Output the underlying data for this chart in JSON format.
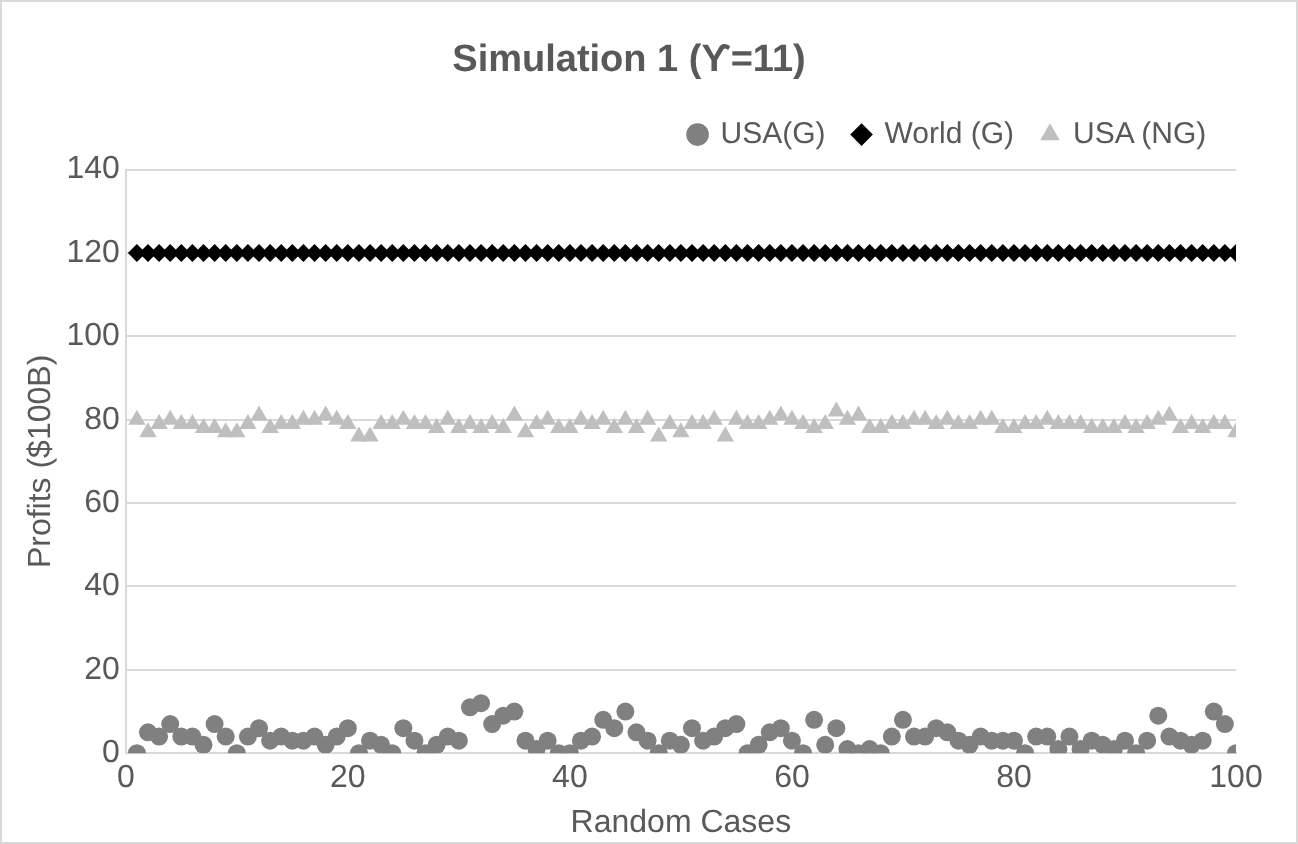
{
  "chart_data": {
    "type": "scatter",
    "title": "Simulation 1 (ϒ=11)",
    "xlabel": "Random Cases",
    "ylabel": "Profits ($100B)",
    "x": [
      1,
      2,
      3,
      4,
      5,
      6,
      7,
      8,
      9,
      10,
      11,
      12,
      13,
      14,
      15,
      16,
      17,
      18,
      19,
      20,
      21,
      22,
      23,
      24,
      25,
      26,
      27,
      28,
      29,
      30,
      31,
      32,
      33,
      34,
      35,
      36,
      37,
      38,
      39,
      40,
      41,
      42,
      43,
      44,
      45,
      46,
      47,
      48,
      49,
      50,
      51,
      52,
      53,
      54,
      55,
      56,
      57,
      58,
      59,
      60,
      61,
      62,
      63,
      64,
      65,
      66,
      67,
      68,
      69,
      70,
      71,
      72,
      73,
      74,
      75,
      76,
      77,
      78,
      79,
      80,
      81,
      82,
      83,
      84,
      85,
      86,
      87,
      88,
      89,
      90,
      91,
      92,
      93,
      94,
      95,
      96,
      97,
      98,
      99,
      100
    ],
    "series": [
      {
        "name": "USA(G)",
        "color": "#808080",
        "marker": "circle",
        "values": [
          0,
          5,
          4,
          7,
          4,
          4,
          2,
          7,
          4,
          0,
          4,
          6,
          3,
          4,
          3,
          3,
          4,
          2,
          4,
          6,
          0,
          3,
          2,
          0,
          6,
          3,
          0,
          2,
          4,
          3,
          11,
          12,
          7,
          9,
          10,
          3,
          1,
          3,
          0,
          0,
          3,
          4,
          8,
          6,
          10,
          5,
          3,
          0,
          3,
          2,
          6,
          3,
          4,
          6,
          7,
          0,
          2,
          5,
          6,
          3,
          0,
          8,
          2,
          6,
          1,
          0,
          1,
          0,
          4,
          8,
          4,
          4,
          6,
          5,
          3,
          2,
          4,
          3,
          3,
          3,
          0,
          4,
          4,
          1,
          4,
          1,
          3,
          2,
          1,
          3,
          0,
          3,
          9,
          4,
          3,
          2,
          3,
          10,
          7,
          0
        ]
      },
      {
        "name": "World (G)",
        "color": "#000000",
        "marker": "diamond",
        "values": [
          120,
          120,
          120,
          120,
          120,
          120,
          120,
          120,
          120,
          120,
          120,
          120,
          120,
          120,
          120,
          120,
          120,
          120,
          120,
          120,
          120,
          120,
          120,
          120,
          120,
          120,
          120,
          120,
          120,
          120,
          120,
          120,
          120,
          120,
          120,
          120,
          120,
          120,
          120,
          120,
          120,
          120,
          120,
          120,
          120,
          120,
          120,
          120,
          120,
          120,
          120,
          120,
          120,
          120,
          120,
          120,
          120,
          120,
          120,
          120,
          120,
          120,
          120,
          120,
          120,
          120,
          120,
          120,
          120,
          120,
          120,
          120,
          120,
          120,
          120,
          120,
          120,
          120,
          120,
          120,
          120,
          120,
          120,
          120,
          120,
          120,
          120,
          120,
          120,
          120,
          120,
          120,
          120,
          120,
          120,
          120,
          120,
          120,
          120,
          120
        ]
      },
      {
        "name": "USA (NG)",
        "color": "#bfbfbf",
        "marker": "triangle",
        "values": [
          80,
          77,
          79,
          80,
          79,
          79,
          78,
          78,
          77,
          77,
          79,
          81,
          78,
          79,
          79,
          80,
          80,
          81,
          80,
          79,
          76,
          76,
          79,
          79,
          80,
          79,
          79,
          78,
          80,
          78,
          79,
          78,
          79,
          78,
          81,
          77,
          79,
          80,
          78,
          78,
          80,
          79,
          80,
          78,
          80,
          78,
          80,
          76,
          79,
          77,
          79,
          79,
          80,
          76,
          80,
          79,
          79,
          80,
          81,
          80,
          79,
          78,
          79,
          82,
          80,
          81,
          78,
          78,
          79,
          79,
          80,
          80,
          79,
          80,
          79,
          79,
          80,
          80,
          78,
          78,
          79,
          79,
          80,
          79,
          79,
          79,
          78,
          78,
          78,
          79,
          78,
          79,
          80,
          81,
          78,
          79,
          78,
          79,
          79,
          77
        ]
      }
    ],
    "xlim": [
      0,
      100
    ],
    "xticks": [
      0,
      20,
      40,
      60,
      80,
      100
    ],
    "ylim": [
      0,
      140
    ],
    "yticks": [
      0,
      20,
      40,
      60,
      80,
      100,
      120,
      140
    ],
    "grid": "y",
    "legend": "top right"
  }
}
